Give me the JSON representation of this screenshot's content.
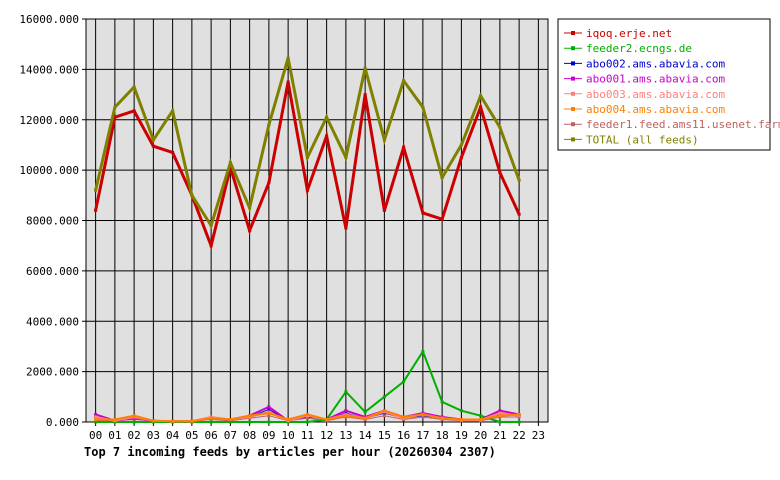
{
  "chart_data": {
    "type": "line",
    "caption": "Top 7 incoming feeds by articles per hour (20260304 2307)",
    "x": [
      "00",
      "01",
      "02",
      "03",
      "04",
      "05",
      "06",
      "07",
      "08",
      "09",
      "10",
      "11",
      "12",
      "13",
      "14",
      "15",
      "16",
      "17",
      "18",
      "19",
      "20",
      "21",
      "22",
      "23"
    ],
    "y_ticks": [
      "0.000",
      "2000.000",
      "4000.000",
      "6000.000",
      "8000.000",
      "10000.000",
      "12000.000",
      "14000.000",
      "16000.000"
    ],
    "ylim": [
      0,
      16000
    ],
    "grid": true,
    "legend_position": "right",
    "series": [
      {
        "name": "iqoq.erje.net",
        "color": "#cc0000",
        "width": 3,
        "values": [
          8400,
          12100,
          12350,
          10950,
          10700,
          9000,
          7000,
          10100,
          7600,
          9500,
          13500,
          9200,
          11350,
          7700,
          13000,
          8400,
          10900,
          8300,
          8050,
          10500,
          12500,
          9900,
          8250,
          null
        ]
      },
      {
        "name": "feeder2.ecngs.de",
        "color": "#00b000",
        "width": 2,
        "values": [
          0,
          0,
          0,
          0,
          0,
          0,
          0,
          0,
          0,
          0,
          0,
          0,
          100,
          1200,
          400,
          1000,
          1600,
          2800,
          800,
          450,
          250,
          0,
          0,
          null
        ]
      },
      {
        "name": "abo002.ams.abavia.com",
        "color": "#0000cc",
        "width": 1,
        "values": [
          200,
          50,
          150,
          50,
          30,
          30,
          150,
          100,
          200,
          500,
          50,
          200,
          100,
          350,
          150,
          350,
          150,
          250,
          150,
          80,
          80,
          300,
          250,
          null
        ]
      },
      {
        "name": "abo001.ams.abavia.com",
        "color": "#cc00cc",
        "width": 2,
        "values": [
          300,
          50,
          150,
          50,
          30,
          30,
          150,
          100,
          250,
          600,
          50,
          250,
          100,
          450,
          200,
          450,
          200,
          350,
          200,
          100,
          100,
          450,
          300,
          null
        ]
      },
      {
        "name": "abo003.ams.abavia.com",
        "color": "#ff8080",
        "width": 2,
        "values": [
          200,
          50,
          200,
          50,
          30,
          30,
          200,
          100,
          200,
          400,
          50,
          250,
          100,
          300,
          150,
          400,
          150,
          300,
          150,
          80,
          80,
          350,
          250,
          null
        ]
      },
      {
        "name": "abo004.ams.abavia.com",
        "color": "#ff8000",
        "width": 2,
        "values": [
          100,
          100,
          250,
          50,
          30,
          30,
          150,
          100,
          250,
          350,
          100,
          300,
          100,
          250,
          150,
          450,
          200,
          300,
          150,
          100,
          100,
          250,
          300,
          null
        ]
      },
      {
        "name": "feeder1.feed.ams11.usenet.farm",
        "color": "#c06060",
        "width": 1,
        "values": [
          50,
          50,
          100,
          50,
          30,
          30,
          100,
          50,
          150,
          250,
          50,
          150,
          50,
          200,
          100,
          250,
          100,
          200,
          100,
          50,
          50,
          200,
          200,
          null
        ]
      },
      {
        "name": "TOTAL (all feeds)",
        "color": "#808000",
        "width": 3,
        "values": [
          9200,
          12500,
          13300,
          11200,
          12350,
          9000,
          7800,
          10300,
          8500,
          11800,
          14450,
          10500,
          12100,
          10500,
          14050,
          11200,
          13550,
          12500,
          9700,
          11000,
          12950,
          11700,
          9600,
          null
        ]
      }
    ]
  }
}
